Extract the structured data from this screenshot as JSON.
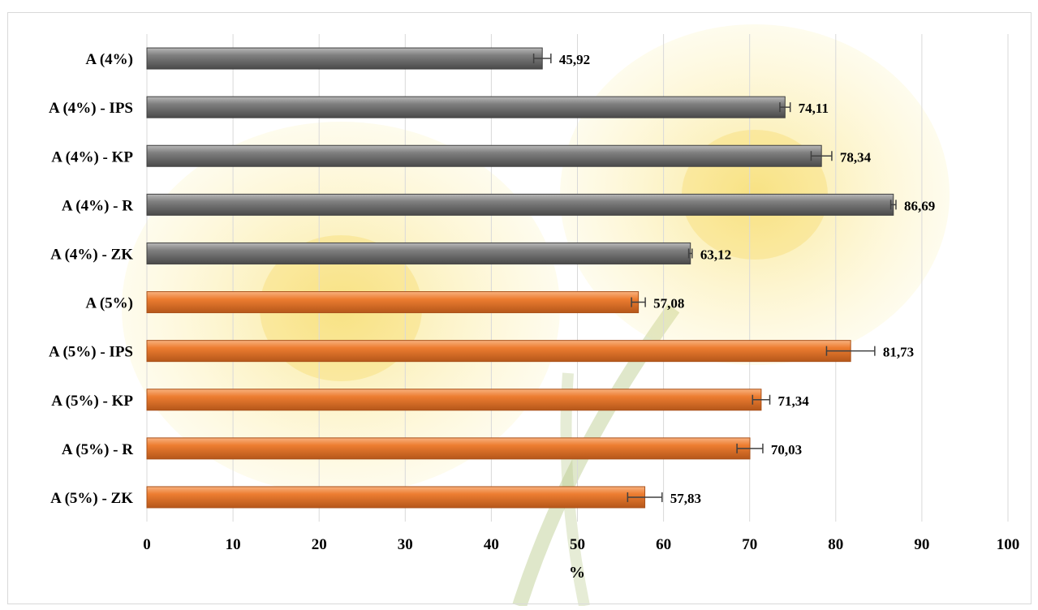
{
  "chart_data": {
    "type": "bar",
    "orientation": "horizontal",
    "categories": [
      "A (4%)",
      "A (4%) - IPS",
      "A (4%) - KP",
      "A (4%) - R",
      "A (4%) - ZK",
      "A (5%)",
      "A (5%) - IPS",
      "A (5%) - KP",
      "A (5%) - R",
      "A (5%) - ZK"
    ],
    "values": [
      45.92,
      74.11,
      78.34,
      86.69,
      63.12,
      57.08,
      81.73,
      71.34,
      70.03,
      57.83
    ],
    "value_labels": [
      "45,92",
      "74,11",
      "78,34",
      "86,69",
      "63,12",
      "57,08",
      "81,73",
      "71,34",
      "70,03",
      "57,83"
    ],
    "errors": [
      1.0,
      0.6,
      1.2,
      0.3,
      0.2,
      0.8,
      2.8,
      1.0,
      1.5,
      2.0
    ],
    "bar_colors": [
      "#7f7f7f",
      "#7f7f7f",
      "#7f7f7f",
      "#7f7f7f",
      "#7f7f7f",
      "#ed7d31",
      "#ed7d31",
      "#ed7d31",
      "#ed7d31",
      "#ed7d31"
    ],
    "title": "",
    "xlabel": "%",
    "ylabel": "",
    "xlim": [
      0,
      100
    ],
    "xticks": [
      0,
      10,
      20,
      30,
      40,
      50,
      60,
      70,
      80,
      90,
      100
    ],
    "grid": true,
    "legend": "none",
    "background_image": "dandelion-flowers"
  }
}
